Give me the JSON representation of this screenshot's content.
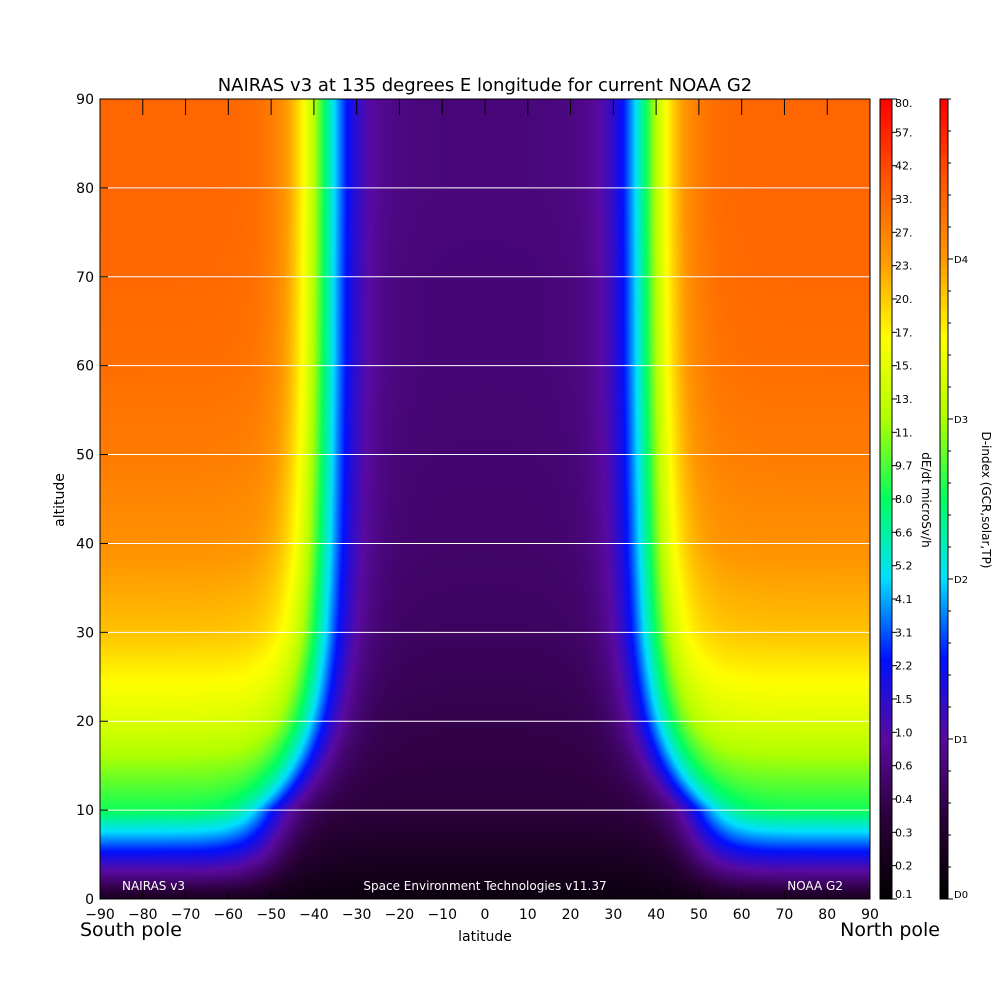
{
  "chart_data": {
    "type": "heatmap",
    "title": "NAIRAS v3 at 135 degrees E longitude for current NOAA G2",
    "xlabel": "latitude",
    "ylabel": "altitude",
    "xlim": [
      -90,
      90
    ],
    "ylim": [
      0,
      90
    ],
    "x_ticks": [
      "-90",
      "-80",
      "-70",
      "-60",
      "-50",
      "-40",
      "-30",
      "-20",
      "-10",
      "0",
      "10",
      "20",
      "30",
      "40",
      "50",
      "60",
      "70",
      "80",
      "90"
    ],
    "y_ticks": [
      "0",
      "10",
      "20",
      "30",
      "40",
      "50",
      "60",
      "70",
      "80",
      "90"
    ],
    "grid": "horizontal",
    "x_end_labels": {
      "left": "South pole",
      "right": "North pole"
    },
    "annotations": {
      "left": "NAIRAS v3",
      "center": "Space Environment Technologies v11.37",
      "right": "NOAA G2"
    },
    "colorbar_dose": {
      "label": "dE/dt microSv/h",
      "tick_labels": [
        "0.1",
        "0.2",
        "0.3",
        "0.4",
        "0.6",
        "1.0",
        "1.5",
        "2.2",
        "3.1",
        "4.1",
        "5.2",
        "6.6",
        "8.0",
        "9.7",
        "11.",
        "13.",
        "15.",
        "17.",
        "20.",
        "23.",
        "27.",
        "33.",
        "42.",
        "57.",
        "80."
      ]
    },
    "colorbar_index": {
      "label": "D-index (GCR,solar,TP)",
      "tick_labels": [
        "D0",
        "D1",
        "D2",
        "D3",
        "D4"
      ],
      "tick_values": [
        0,
        1,
        2,
        3,
        4
      ]
    },
    "field": {
      "description_units": "dE/dt microSv/h",
      "sample_altitudes": [
        0,
        10,
        20,
        30,
        40,
        50,
        60,
        70,
        80,
        90
      ],
      "polar_values": [
        0.15,
        3.0,
        8.0,
        16.0,
        23.0,
        28.0,
        32.0,
        34.0,
        35.0,
        35.0
      ],
      "equatorial_values": [
        0.12,
        0.2,
        0.22,
        0.25,
        0.27,
        0.28,
        0.29,
        0.29,
        0.3,
        0.3
      ],
      "cutoff_latitude_high_alt": 38,
      "cutoff_latitude_low_alt": 50
    },
    "colormap": [
      "#000000",
      "#2a0038",
      "#5a0aa0",
      "#0010ff",
      "#00e0ff",
      "#00ff60",
      "#b0ff00",
      "#ffff00",
      "#ff9900",
      "#ff5500",
      "#ff0000"
    ]
  }
}
